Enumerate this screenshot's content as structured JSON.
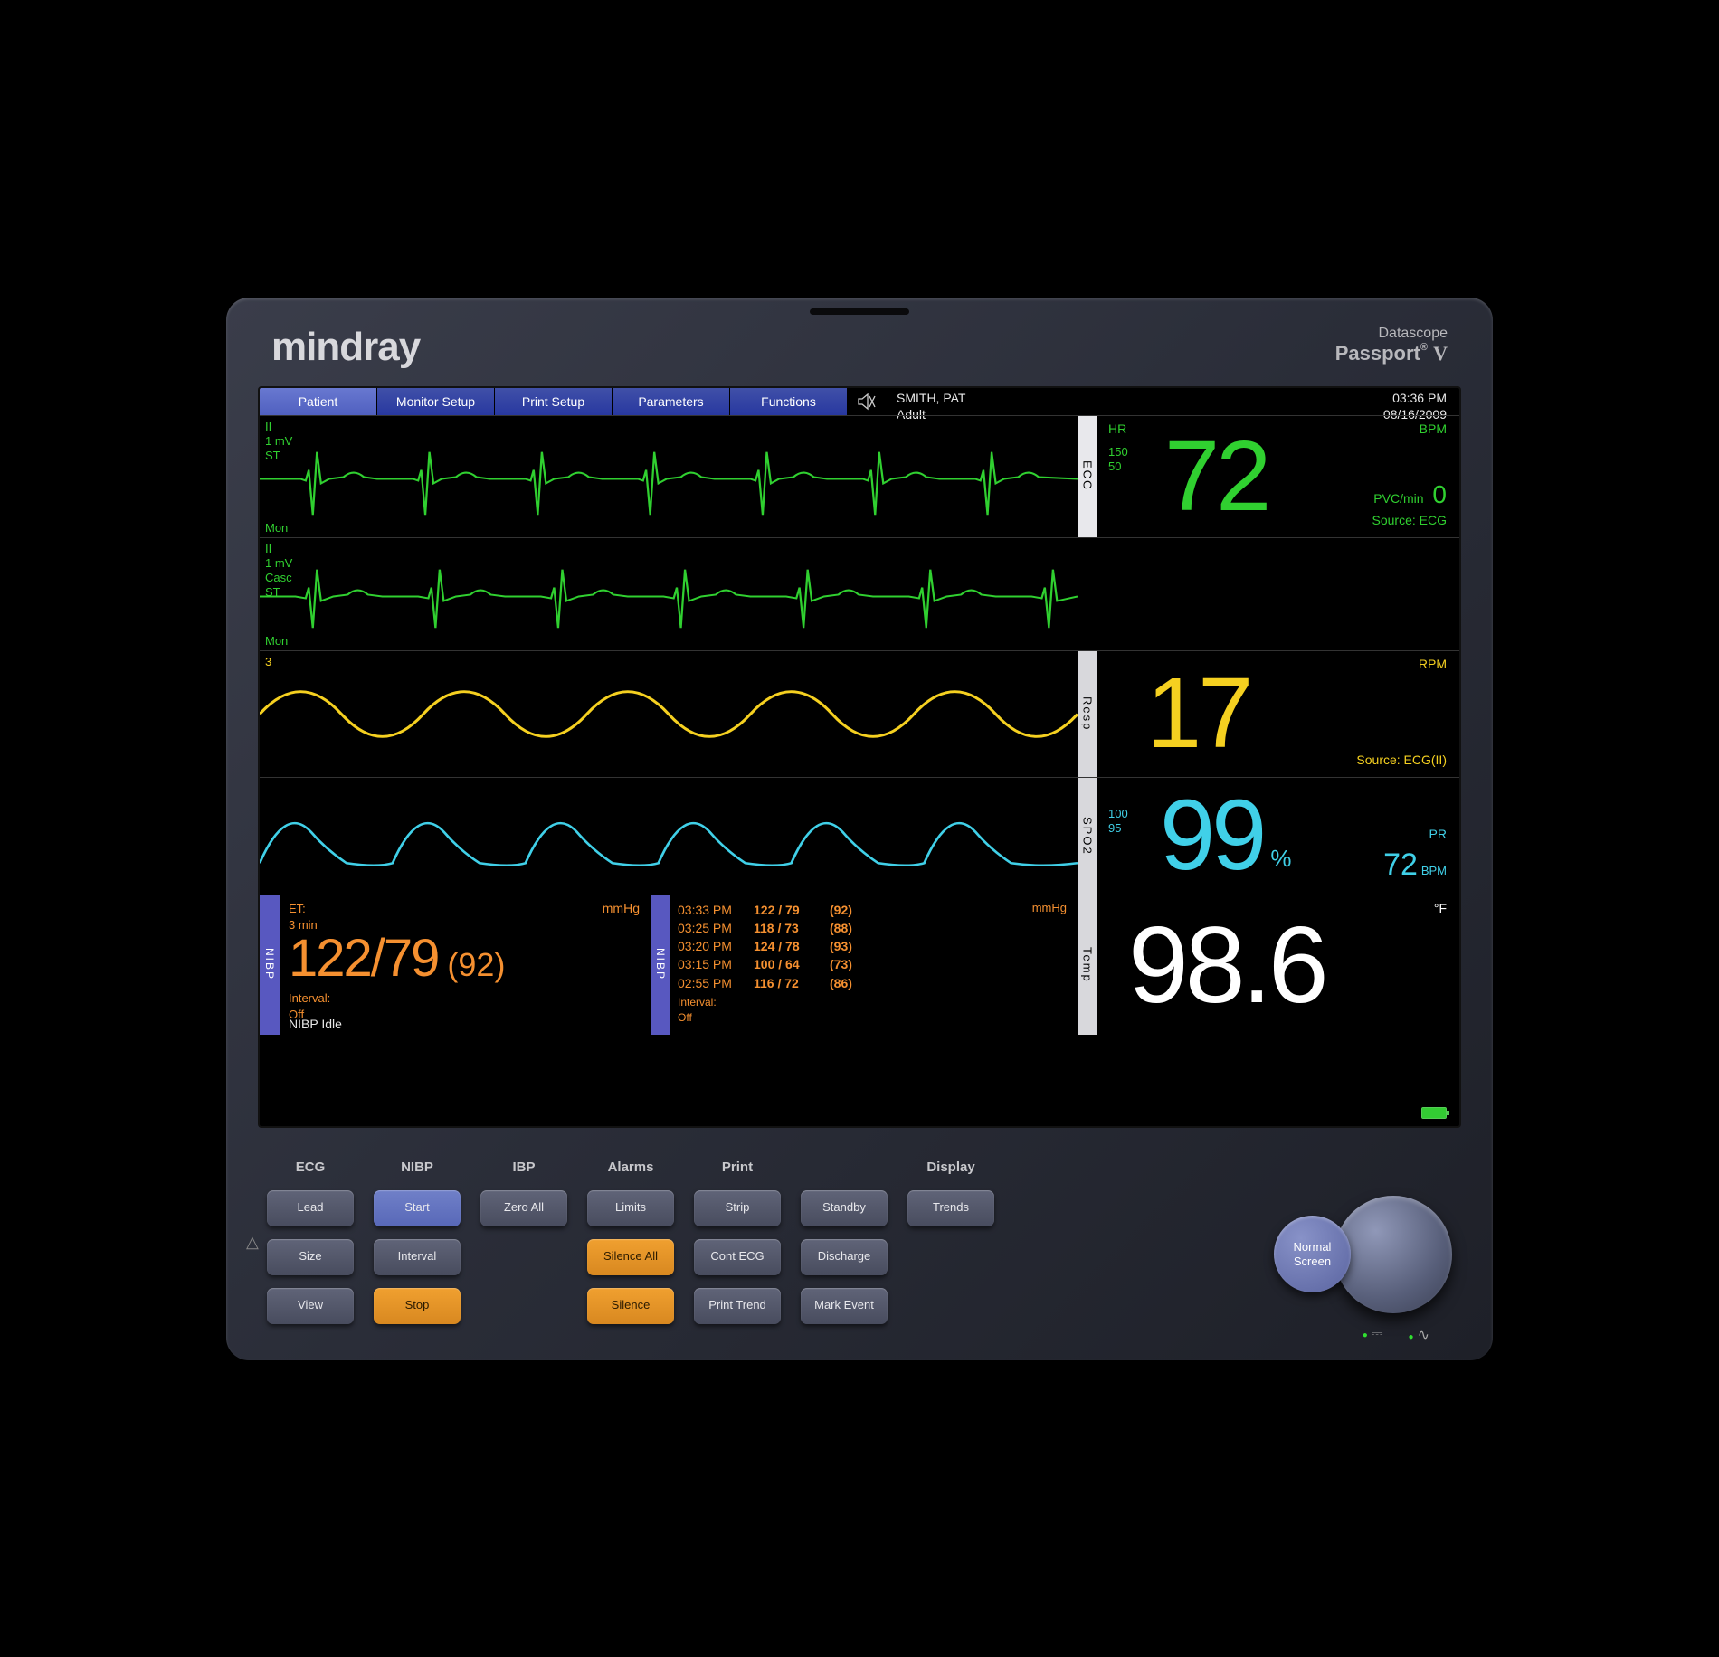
{
  "brand": "mindray",
  "model": {
    "line1": "Datascope",
    "line2": "Passport",
    "suffix": "V"
  },
  "menu": [
    "Patient",
    "Monitor Setup",
    "Print Setup",
    "Parameters",
    "Functions"
  ],
  "patient": {
    "name": "SMITH, PAT",
    "type": "Adult",
    "time": "03:36 PM",
    "date": "08/16/2009"
  },
  "ecg": {
    "tag": "ECG",
    "lead": "II",
    "scale": "1 mV",
    "st": "ST",
    "mon": "Mon",
    "hr_label": "HR",
    "hr_value": "72",
    "unit": "BPM",
    "limits_hi": "150",
    "limits_lo": "50",
    "pvc_label": "PVC/min",
    "pvc_value": "0",
    "source": "Source: ECG",
    "color": "#30d030",
    "wave2_lead": "II",
    "wave2_scale": "1 mV",
    "wave2_casc": "Casc",
    "wave2_st": "ST"
  },
  "resp": {
    "tag": "Resp",
    "three": "3",
    "value": "17",
    "unit": "RPM",
    "source": "Source: ECG(II)",
    "color": "#f5d020"
  },
  "spo2": {
    "tag": "SPO2",
    "value": "99",
    "pct": "%",
    "pr_label": "PR",
    "pr_value": "72",
    "pr_unit": "BPM",
    "limit_hi": "100",
    "limit_lo": "95",
    "color": "#40d0e8"
  },
  "nibp": {
    "tag": "NIBP",
    "et_label": "ET:",
    "et_value": "3 min",
    "interval_label": "Interval:",
    "interval_value": "Off",
    "reading": "122/79",
    "mean": "(92)",
    "unit": "mmHg",
    "status": "NIBP Idle",
    "hist_interval_label": "Interval:",
    "hist_interval_value": "Off",
    "history": [
      {
        "t": "03:33 PM",
        "v": "122 / 79",
        "m": "(92)"
      },
      {
        "t": "03:25 PM",
        "v": "118 / 73",
        "m": "(88)"
      },
      {
        "t": "03:20 PM",
        "v": "124 / 78",
        "m": "(93)"
      },
      {
        "t": "03:15 PM",
        "v": "100 / 64",
        "m": "(73)"
      },
      {
        "t": "02:55 PM",
        "v": "116 / 72",
        "m": "(86)"
      }
    ],
    "color": "#f59030"
  },
  "temp": {
    "tag": "Temp",
    "value": "98.6",
    "unit": "°F",
    "color": "#ffffff"
  },
  "buttons": {
    "ecg": {
      "head": "ECG",
      "items": [
        "Lead",
        "Size",
        "View"
      ]
    },
    "nibp": {
      "head": "NIBP",
      "items": [
        "Start",
        "Interval",
        "Stop"
      ]
    },
    "ibp": {
      "head": "IBP",
      "items": [
        "Zero All"
      ]
    },
    "alarms": {
      "head": "Alarms",
      "items": [
        "Limits",
        "Silence All",
        "Silence"
      ]
    },
    "print": {
      "head": "Print",
      "items": [
        "Strip",
        "Cont ECG",
        "Print Trend"
      ]
    },
    "col6": {
      "items": [
        "Standby",
        "Discharge",
        "Mark Event"
      ]
    },
    "display": {
      "head": "Display",
      "items": [
        "Trends"
      ]
    },
    "normal_screen": "Normal Screen"
  }
}
